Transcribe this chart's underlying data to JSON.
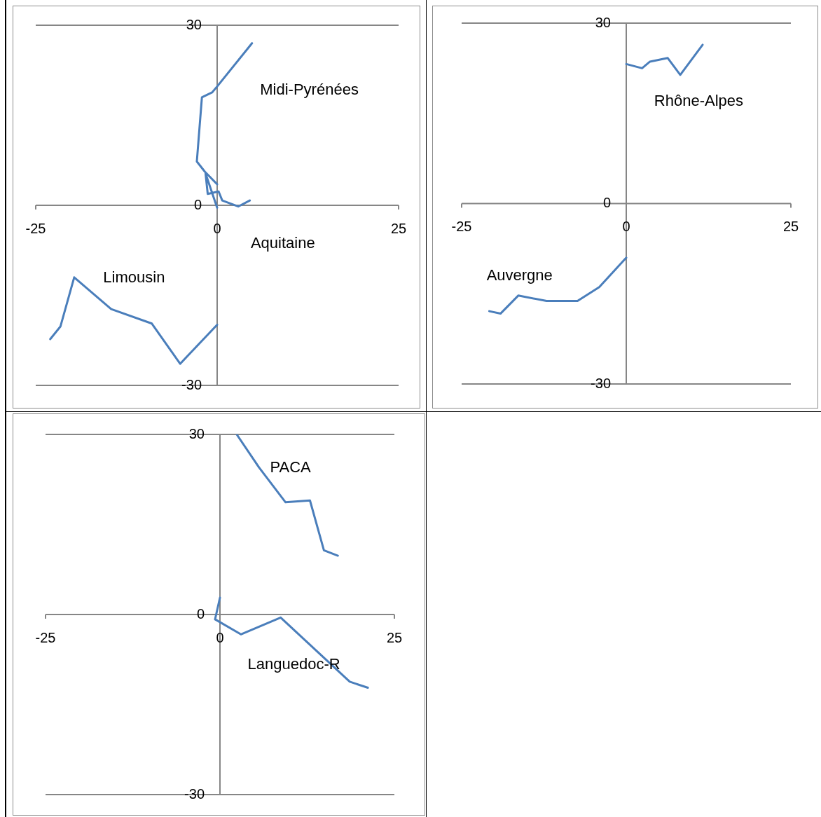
{
  "chart_data": [
    {
      "type": "line",
      "xlim": [
        -25,
        25
      ],
      "ylim": [
        -30,
        30
      ],
      "xticks": [
        -25,
        0,
        25
      ],
      "yticks": [
        -30,
        0,
        30
      ],
      "marker": "none",
      "series": [
        {
          "color": "#4a7ebb",
          "x": [
            4.8,
            0,
            -0.7,
            -2.1,
            -2.8,
            -1.7,
            0
          ],
          "values": [
            27.0,
            19.8,
            18.8,
            18.0,
            7.3,
            5.6,
            3.5
          ]
        },
        {
          "color": "#4a7ebb",
          "x": [
            4.5,
            2.9,
            0.7,
            0.2,
            -1.3,
            -1.6,
            0
          ],
          "values": [
            0.8,
            -0.2,
            0.8,
            2.3,
            1.9,
            5.3,
            -0.4
          ]
        },
        {
          "color": "#4a7ebb",
          "x": [
            -23.0,
            -21.6,
            -19.7,
            -14.6,
            -9.0,
            -5.1,
            0
          ],
          "values": [
            -22.3,
            -20.2,
            -12.0,
            -17.3,
            -19.7,
            -26.4,
            -19.9
          ]
        }
      ],
      "annotations": [
        "Midi-Pyrénées",
        "Aquitaine",
        "Limousin"
      ]
    },
    {
      "type": "line",
      "xlim": [
        -25,
        25
      ],
      "ylim": [
        -30,
        30
      ],
      "xticks": [
        -25,
        0,
        25
      ],
      "yticks": [
        -30,
        0,
        30
      ],
      "marker": "none",
      "series": [
        {
          "color": "#4a7ebb",
          "x": [
            0,
            2.4,
            3.6,
            6.3,
            8.2,
            11.6
          ],
          "values": [
            23.2,
            22.5,
            23.6,
            24.2,
            21.4,
            26.4
          ]
        },
        {
          "color": "#4a7ebb",
          "x": [
            -20.8,
            -19.1,
            -16.4,
            -12.1,
            -7.4,
            -4.1,
            0
          ],
          "values": [
            -17.9,
            -18.3,
            -15.3,
            -16.2,
            -16.2,
            -13.9,
            -9.0
          ]
        }
      ],
      "annotations": [
        "Rhône-Alpes",
        "Auvergne"
      ]
    },
    {
      "type": "line",
      "xlim": [
        -25,
        25
      ],
      "ylim": [
        -30,
        30
      ],
      "xticks": [
        -25,
        0,
        25
      ],
      "yticks": [
        -30,
        0,
        30
      ],
      "marker": "none",
      "series": [
        {
          "color": "#4a7ebb",
          "x": [
            2.4,
            5.6,
            9.4,
            12.9,
            14.9,
            16.9
          ],
          "values": [
            30.0,
            24.5,
            18.7,
            19.0,
            10.7,
            9.8
          ]
        },
        {
          "color": "#4a7ebb",
          "x": [
            0,
            -0.7,
            3.0,
            8.7,
            18.6,
            21.2
          ],
          "values": [
            2.8,
            -0.8,
            -3.3,
            -0.5,
            -11.2,
            -12.2
          ]
        }
      ],
      "annotations": [
        "PACA",
        "Languedoc-R"
      ]
    }
  ]
}
